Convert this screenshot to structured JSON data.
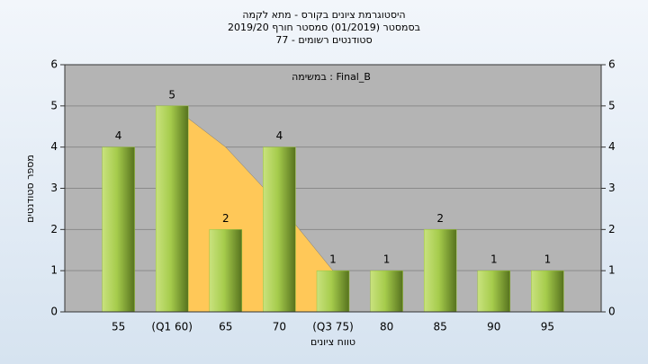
{
  "chart_data": {
    "type": "bar",
    "title": [
      "היסטוגרמת ציונים בקורס - מתא לקמה",
      "בסמסטר  (01/2019)  סמסטר חורף 2019/20",
      "סטודנטים רשומים - 77"
    ],
    "annotation": "במשימה : Final_B",
    "y_label": "מספר סטודנטים",
    "x_label": "טווח ציונים",
    "categories": [
      "55",
      "(Q1 60)",
      "65",
      "70",
      "(Q3 75)",
      "80",
      "85",
      "90",
      "95"
    ],
    "series": [
      {
        "type": "area",
        "color": "#ffc858",
        "values": [
          null,
          5,
          4,
          2.6,
          1,
          null,
          null,
          null,
          null
        ]
      },
      {
        "type": "bar",
        "color": "#9bc43c",
        "values": [
          4,
          5,
          2,
          4,
          1,
          1,
          2,
          1,
          1
        ]
      }
    ],
    "ylim": [
      0,
      6
    ],
    "yticks": [
      0,
      1,
      2,
      3,
      4,
      5,
      6
    ],
    "grid": true
  }
}
